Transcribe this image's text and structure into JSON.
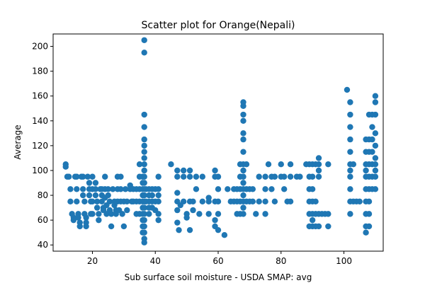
{
  "chart_data": {
    "type": "scatter",
    "title": "Scatter plot for Orange(Nepali)",
    "xlabel": "Sub surface soil moisture - USDA SMAP: avg",
    "ylabel": "Average",
    "xlim": [
      7.5,
      112.5
    ],
    "ylim": [
      35,
      210
    ],
    "xticks": [
      20,
      40,
      60,
      80,
      100
    ],
    "yticks": [
      40,
      60,
      80,
      100,
      120,
      140,
      160,
      180,
      200
    ],
    "grid": false,
    "marker_color": "#1f77b4",
    "series": [
      {
        "points": [
          [
            11.5,
            105
          ],
          [
            11.5,
            103
          ],
          [
            12,
            95
          ],
          [
            12.5,
            95
          ],
          [
            13,
            85
          ],
          [
            13,
            75
          ],
          [
            13.5,
            65
          ],
          [
            14,
            62
          ],
          [
            14,
            60
          ],
          [
            14.5,
            95
          ],
          [
            15,
            95
          ],
          [
            15,
            85
          ],
          [
            15,
            75
          ],
          [
            15.5,
            65
          ],
          [
            15.5,
            62
          ],
          [
            16,
            58
          ],
          [
            16,
            55
          ],
          [
            16.5,
            95
          ],
          [
            17,
            95
          ],
          [
            17,
            85
          ],
          [
            17,
            80
          ],
          [
            17.5,
            75
          ],
          [
            17.5,
            65
          ],
          [
            18,
            62
          ],
          [
            18,
            58
          ],
          [
            18,
            55
          ],
          [
            18.5,
            95
          ],
          [
            19,
            90
          ],
          [
            19,
            85
          ],
          [
            19,
            80
          ],
          [
            19.5,
            75
          ],
          [
            19.5,
            65
          ],
          [
            20,
            95
          ],
          [
            20,
            85
          ],
          [
            20,
            75
          ],
          [
            20,
            65
          ],
          [
            21,
            90
          ],
          [
            21,
            85
          ],
          [
            21,
            80
          ],
          [
            21.5,
            75
          ],
          [
            21.5,
            70
          ],
          [
            22,
            65
          ],
          [
            22,
            60
          ],
          [
            22.5,
            85
          ],
          [
            23,
            85
          ],
          [
            23,
            80
          ],
          [
            23,
            75
          ],
          [
            23.5,
            70
          ],
          [
            23.5,
            68
          ],
          [
            24,
            95
          ],
          [
            24,
            85
          ],
          [
            24,
            78
          ],
          [
            24.5,
            72
          ],
          [
            24.5,
            65
          ],
          [
            25,
            85
          ],
          [
            25,
            80
          ],
          [
            25.5,
            75
          ],
          [
            25.5,
            68
          ],
          [
            26,
            65
          ],
          [
            26,
            55
          ],
          [
            26.5,
            85
          ],
          [
            27,
            75
          ],
          [
            27,
            72
          ],
          [
            27.5,
            68
          ],
          [
            27.5,
            65
          ],
          [
            28,
            95
          ],
          [
            28,
            85
          ],
          [
            28,
            75
          ],
          [
            28.5,
            68
          ],
          [
            29,
            95
          ],
          [
            29,
            85
          ],
          [
            29,
            75
          ],
          [
            29.5,
            65
          ],
          [
            30,
            55
          ],
          [
            30,
            75
          ],
          [
            30.5,
            85
          ],
          [
            31,
            75
          ],
          [
            31,
            68
          ],
          [
            32,
            88
          ],
          [
            32,
            85
          ],
          [
            32.5,
            75
          ],
          [
            33,
            85
          ],
          [
            33,
            75
          ],
          [
            34,
            85
          ],
          [
            34,
            75
          ],
          [
            34,
            65
          ],
          [
            35,
            105
          ],
          [
            35,
            95
          ],
          [
            35,
            85
          ],
          [
            35,
            75
          ],
          [
            35,
            65
          ],
          [
            36,
            95
          ],
          [
            36,
            90
          ],
          [
            36,
            85
          ],
          [
            36,
            80
          ],
          [
            36,
            75
          ],
          [
            36,
            70
          ],
          [
            36,
            65
          ],
          [
            36,
            60
          ],
          [
            36,
            55
          ],
          [
            36,
            50
          ],
          [
            36.5,
            205
          ],
          [
            36.5,
            195
          ],
          [
            36.5,
            145
          ],
          [
            36.5,
            135
          ],
          [
            36.5,
            125
          ],
          [
            36.5,
            120
          ],
          [
            36.5,
            115
          ],
          [
            36.5,
            110
          ],
          [
            36.5,
            105
          ],
          [
            36.5,
            100
          ],
          [
            36.5,
            95
          ],
          [
            36.5,
            90
          ],
          [
            36.5,
            85
          ],
          [
            36.5,
            80
          ],
          [
            36.5,
            75
          ],
          [
            36.5,
            70
          ],
          [
            36.5,
            65
          ],
          [
            36.5,
            60
          ],
          [
            36.5,
            55
          ],
          [
            36.5,
            50
          ],
          [
            36.5,
            45
          ],
          [
            36.5,
            42
          ],
          [
            37,
            75
          ],
          [
            37,
            85
          ],
          [
            38,
            85
          ],
          [
            38,
            80
          ],
          [
            38,
            75
          ],
          [
            38,
            70
          ],
          [
            38,
            65
          ],
          [
            39,
            85
          ],
          [
            39,
            80
          ],
          [
            39,
            75
          ],
          [
            39,
            70
          ],
          [
            40,
            85
          ],
          [
            40,
            75
          ],
          [
            40,
            68
          ],
          [
            41,
            95
          ],
          [
            41,
            85
          ],
          [
            41,
            80
          ],
          [
            41,
            75
          ],
          [
            41,
            65
          ],
          [
            41,
            60
          ],
          [
            45,
            105
          ],
          [
            47,
            100
          ],
          [
            47,
            95
          ],
          [
            47,
            82
          ],
          [
            47,
            75
          ],
          [
            47,
            68
          ],
          [
            47,
            58
          ],
          [
            47.5,
            52
          ],
          [
            48,
            72
          ],
          [
            49,
            100
          ],
          [
            49,
            95
          ],
          [
            49,
            75
          ],
          [
            50,
            65
          ],
          [
            50,
            62
          ],
          [
            51,
            100
          ],
          [
            51,
            95
          ],
          [
            51,
            75
          ],
          [
            51,
            52
          ],
          [
            52,
            75
          ],
          [
            52,
            68
          ],
          [
            53,
            95
          ],
          [
            53,
            85
          ],
          [
            54,
            65
          ],
          [
            55,
            95
          ],
          [
            55,
            75
          ],
          [
            57,
            78
          ],
          [
            57,
            75
          ],
          [
            57,
            65
          ],
          [
            59,
            100
          ],
          [
            59,
            95
          ],
          [
            59,
            75
          ],
          [
            59,
            60
          ],
          [
            59,
            55
          ],
          [
            60,
            95
          ],
          [
            60,
            85
          ],
          [
            60,
            75
          ],
          [
            60,
            65
          ],
          [
            60,
            52
          ],
          [
            62,
            48
          ],
          [
            63,
            85
          ],
          [
            64,
            75
          ],
          [
            65,
            85
          ],
          [
            65,
            75
          ],
          [
            66,
            85
          ],
          [
            66,
            75
          ],
          [
            66,
            65
          ],
          [
            67,
            105
          ],
          [
            67,
            95
          ],
          [
            67,
            85
          ],
          [
            67,
            75
          ],
          [
            67,
            65
          ],
          [
            68,
            155
          ],
          [
            68,
            152
          ],
          [
            68,
            145
          ],
          [
            68,
            140
          ],
          [
            68,
            130
          ],
          [
            68,
            125
          ],
          [
            68,
            115
          ],
          [
            68,
            105
          ],
          [
            68,
            100
          ],
          [
            68,
            95
          ],
          [
            68,
            90
          ],
          [
            68,
            85
          ],
          [
            68,
            80
          ],
          [
            68,
            75
          ],
          [
            68,
            70
          ],
          [
            68,
            65
          ],
          [
            69,
            105
          ],
          [
            69,
            85
          ],
          [
            69,
            75
          ],
          [
            70,
            85
          ],
          [
            70,
            75
          ],
          [
            71,
            85
          ],
          [
            71,
            75
          ],
          [
            72,
            65
          ],
          [
            73,
            95
          ],
          [
            73,
            75
          ],
          [
            75,
            95
          ],
          [
            75,
            85
          ],
          [
            75,
            75
          ],
          [
            75,
            65
          ],
          [
            76,
            105
          ],
          [
            77,
            95
          ],
          [
            77,
            85
          ],
          [
            78,
            95
          ],
          [
            78,
            75
          ],
          [
            80,
            105
          ],
          [
            80,
            95
          ],
          [
            81,
            95
          ],
          [
            81,
            85
          ],
          [
            82,
            75
          ],
          [
            83,
            105
          ],
          [
            83,
            95
          ],
          [
            83,
            75
          ],
          [
            85,
            95
          ],
          [
            86,
            95
          ],
          [
            88,
            105
          ],
          [
            89,
            105
          ],
          [
            89,
            95
          ],
          [
            89,
            85
          ],
          [
            89,
            75
          ],
          [
            89,
            65
          ],
          [
            89,
            55
          ],
          [
            90,
            105
          ],
          [
            90,
            95
          ],
          [
            90,
            85
          ],
          [
            90,
            75
          ],
          [
            90,
            65
          ],
          [
            90,
            60
          ],
          [
            90,
            55
          ],
          [
            91,
            105
          ],
          [
            91,
            75
          ],
          [
            91,
            65
          ],
          [
            91,
            55
          ],
          [
            92,
            110
          ],
          [
            92,
            105
          ],
          [
            92,
            100
          ],
          [
            92,
            95
          ],
          [
            92,
            65
          ],
          [
            92,
            55
          ],
          [
            93,
            65
          ],
          [
            94,
            65
          ],
          [
            95,
            105
          ],
          [
            95,
            65
          ],
          [
            95,
            55
          ],
          [
            101,
            165
          ],
          [
            102,
            155
          ],
          [
            102,
            145
          ],
          [
            102,
            135
          ],
          [
            102,
            125
          ],
          [
            102,
            115
          ],
          [
            102,
            105
          ],
          [
            102,
            100
          ],
          [
            102,
            95
          ],
          [
            102,
            85
          ],
          [
            102,
            75
          ],
          [
            102,
            65
          ],
          [
            103,
            105
          ],
          [
            103,
            75
          ],
          [
            104,
            75
          ],
          [
            105,
            75
          ],
          [
            107,
            125
          ],
          [
            107,
            115
          ],
          [
            107,
            105
          ],
          [
            107,
            100
          ],
          [
            107,
            95
          ],
          [
            107,
            85
          ],
          [
            107,
            75
          ],
          [
            107,
            65
          ],
          [
            107,
            55
          ],
          [
            107,
            50
          ],
          [
            108,
            145
          ],
          [
            108,
            125
          ],
          [
            108,
            115
          ],
          [
            108,
            105
          ],
          [
            108,
            95
          ],
          [
            108,
            85
          ],
          [
            108,
            75
          ],
          [
            108,
            65
          ],
          [
            108,
            55
          ],
          [
            109,
            145
          ],
          [
            109,
            135
          ],
          [
            109,
            125
          ],
          [
            109,
            115
          ],
          [
            109,
            105
          ],
          [
            109,
            95
          ],
          [
            109,
            85
          ],
          [
            110,
            160
          ],
          [
            110,
            155
          ],
          [
            110,
            145
          ],
          [
            110,
            130
          ],
          [
            110,
            120
          ],
          [
            110,
            110
          ],
          [
            110,
            105
          ],
          [
            110,
            100
          ],
          [
            110,
            95
          ],
          [
            110,
            85
          ]
        ]
      }
    ]
  }
}
